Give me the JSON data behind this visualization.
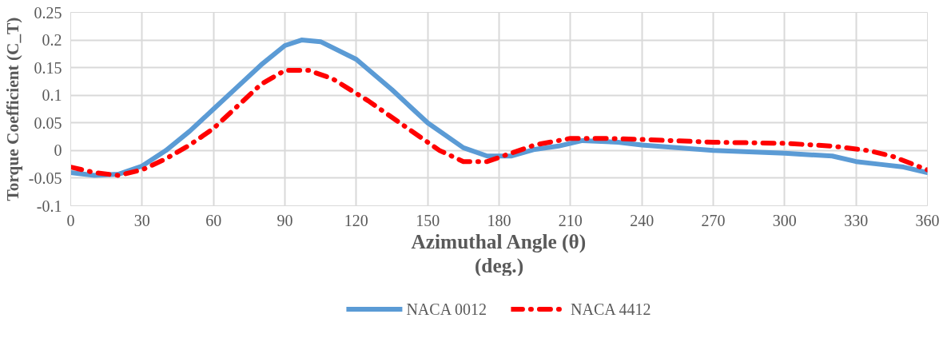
{
  "chart_data": {
    "type": "line",
    "xlabel": "Azimuthal Angle (θ)\n(deg.)",
    "ylabel": "Torque Coefficient (C_T)",
    "xlim": [
      0,
      360
    ],
    "xticks": [
      0,
      30,
      60,
      90,
      120,
      150,
      180,
      210,
      240,
      270,
      300,
      330,
      360
    ],
    "ylim": [
      -0.1,
      0.25
    ],
    "yticks": [
      -0.1,
      -0.05,
      0,
      0.05,
      0.1,
      0.15,
      0.2,
      0.25
    ],
    "grid": true,
    "legend": "bottom",
    "series": [
      {
        "name": "NACA 0012",
        "color": "#5b9bd5",
        "line_style": "solid",
        "x": [
          0,
          10,
          20,
          30,
          40,
          50,
          60,
          70,
          80,
          90,
          97,
          105,
          120,
          135,
          150,
          165,
          175,
          185,
          195,
          205,
          215,
          230,
          240,
          270,
          300,
          320,
          330,
          340,
          350,
          360
        ],
        "values": [
          -0.04,
          -0.045,
          -0.043,
          -0.028,
          0.0,
          0.035,
          0.075,
          0.115,
          0.155,
          0.19,
          0.2,
          0.197,
          0.165,
          0.11,
          0.05,
          0.005,
          -0.01,
          -0.01,
          0.002,
          0.008,
          0.018,
          0.015,
          0.01,
          0.0,
          -0.005,
          -0.01,
          -0.02,
          -0.025,
          -0.03,
          -0.04
        ]
      },
      {
        "name": "NACA 4412",
        "color": "#ff0000",
        "line_style": "dashdot",
        "x": [
          0,
          10,
          20,
          30,
          40,
          50,
          60,
          70,
          80,
          90,
          100,
          110,
          125,
          140,
          155,
          165,
          175,
          185,
          195,
          210,
          225,
          240,
          270,
          300,
          320,
          335,
          345,
          360
        ],
        "values": [
          -0.03,
          -0.04,
          -0.045,
          -0.035,
          -0.015,
          0.01,
          0.04,
          0.08,
          0.12,
          0.145,
          0.145,
          0.13,
          0.09,
          0.045,
          0.0,
          -0.02,
          -0.02,
          -0.005,
          0.01,
          0.022,
          0.022,
          0.02,
          0.015,
          0.013,
          0.008,
          0.0,
          -0.01,
          -0.035
        ]
      }
    ]
  }
}
